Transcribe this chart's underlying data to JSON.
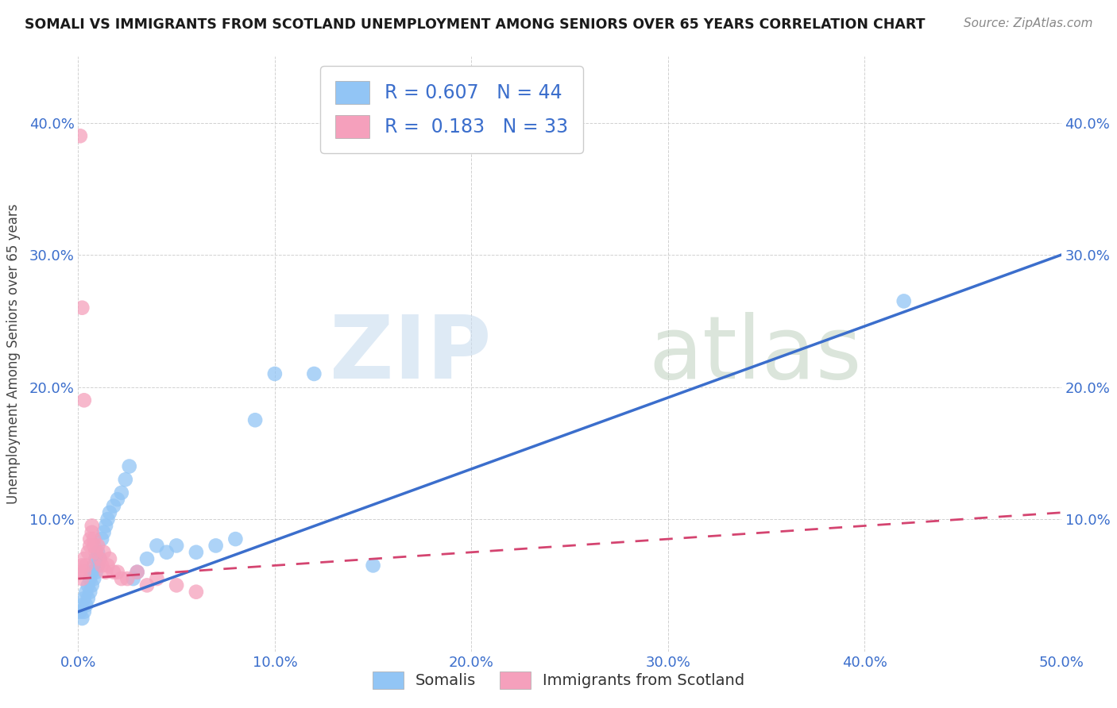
{
  "title": "SOMALI VS IMMIGRANTS FROM SCOTLAND UNEMPLOYMENT AMONG SENIORS OVER 65 YEARS CORRELATION CHART",
  "source": "Source: ZipAtlas.com",
  "ylabel": "Unemployment Among Seniors over 65 years",
  "xlim": [
    0,
    0.5
  ],
  "ylim": [
    0,
    0.45
  ],
  "xticks": [
    0.0,
    0.1,
    0.2,
    0.3,
    0.4,
    0.5
  ],
  "xtick_labels": [
    "0.0%",
    "10.0%",
    "20.0%",
    "30.0%",
    "40.0%",
    "50.0%"
  ],
  "yticks": [
    0.0,
    0.1,
    0.2,
    0.3,
    0.4
  ],
  "ytick_labels": [
    "",
    "10.0%",
    "20.0%",
    "30.0%",
    "40.0%"
  ],
  "somali_color": "#92C5F5",
  "scotland_color": "#F5A0BC",
  "somali_line_color": "#3B6ECC",
  "scotland_line_color": "#D44470",
  "somali_R": 0.607,
  "somali_N": 44,
  "scotland_R": 0.183,
  "scotland_N": 33,
  "legend_label_1": "Somalis",
  "legend_label_2": "Immigrants from Scotland",
  "somali_x": [
    0.001,
    0.002,
    0.002,
    0.003,
    0.003,
    0.004,
    0.004,
    0.005,
    0.005,
    0.006,
    0.006,
    0.007,
    0.007,
    0.008,
    0.008,
    0.009,
    0.009,
    0.01,
    0.01,
    0.011,
    0.012,
    0.013,
    0.014,
    0.015,
    0.016,
    0.018,
    0.02,
    0.022,
    0.024,
    0.026,
    0.028,
    0.03,
    0.035,
    0.04,
    0.045,
    0.05,
    0.06,
    0.07,
    0.08,
    0.09,
    0.1,
    0.12,
    0.15,
    0.42
  ],
  "somali_y": [
    0.03,
    0.025,
    0.035,
    0.03,
    0.04,
    0.035,
    0.045,
    0.04,
    0.05,
    0.045,
    0.055,
    0.05,
    0.06,
    0.055,
    0.065,
    0.06,
    0.07,
    0.065,
    0.075,
    0.07,
    0.085,
    0.09,
    0.095,
    0.1,
    0.105,
    0.11,
    0.115,
    0.12,
    0.13,
    0.14,
    0.055,
    0.06,
    0.07,
    0.08,
    0.075,
    0.08,
    0.075,
    0.08,
    0.085,
    0.175,
    0.21,
    0.21,
    0.065,
    0.265
  ],
  "scotland_x": [
    0.001,
    0.002,
    0.002,
    0.003,
    0.003,
    0.004,
    0.005,
    0.006,
    0.006,
    0.007,
    0.007,
    0.008,
    0.008,
    0.009,
    0.01,
    0.011,
    0.012,
    0.013,
    0.014,
    0.015,
    0.016,
    0.018,
    0.02,
    0.022,
    0.025,
    0.03,
    0.035,
    0.04,
    0.05,
    0.06,
    0.001,
    0.002,
    0.003
  ],
  "scotland_y": [
    0.06,
    0.055,
    0.065,
    0.06,
    0.07,
    0.065,
    0.075,
    0.08,
    0.085,
    0.09,
    0.095,
    0.085,
    0.08,
    0.075,
    0.08,
    0.07,
    0.065,
    0.075,
    0.06,
    0.065,
    0.07,
    0.06,
    0.06,
    0.055,
    0.055,
    0.06,
    0.05,
    0.055,
    0.05,
    0.045,
    0.39,
    0.26,
    0.19
  ]
}
